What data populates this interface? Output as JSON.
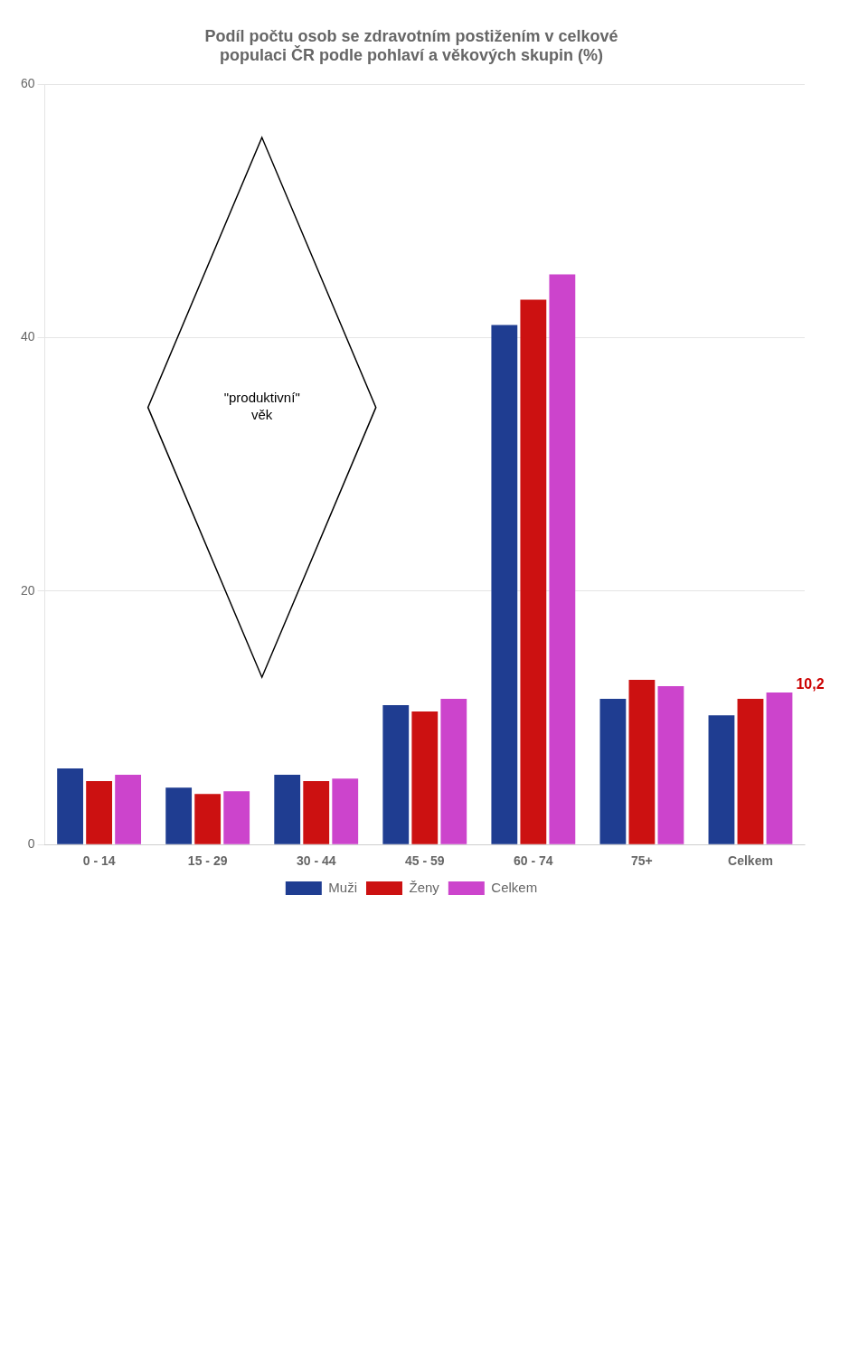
{
  "chart_data": {
    "type": "bar",
    "title": [
      "Podíl počtu osob se zdravotním postižením v celkové",
      "populaci ČR podle pohlaví a věkových skupin (%)"
    ],
    "categories": [
      "0 - 14",
      "15 - 29",
      "30 - 44",
      "45 - 59",
      "60 - 74",
      "75+",
      "Celkem"
    ],
    "series": [
      {
        "name": "Muži",
        "color": "#1F3D91",
        "values": [
          6.0,
          4.5,
          5.5,
          11.0,
          41.0,
          11.5,
          10.2
        ]
      },
      {
        "name": "Ženy",
        "color": "#CC1111",
        "values": [
          5.0,
          4.0,
          5.0,
          10.5,
          43.0,
          13.0,
          11.5
        ]
      },
      {
        "name": "Celkem",
        "color": "#CC44CC",
        "values": [
          5.5,
          4.2,
          5.2,
          11.5,
          45.0,
          12.5,
          12.0
        ]
      }
    ],
    "ylim": [
      0,
      60
    ],
    "yticks": [
      0,
      20,
      40,
      60
    ],
    "grid": true,
    "legend": "bottom",
    "annotations": [
      {
        "text": "10,2",
        "category": "Celkem",
        "color": "#CC0000"
      },
      {
        "text": "\"produktivní\"\nvěk",
        "categories": [
          "15 - 29",
          "30 - 44"
        ]
      }
    ]
  }
}
